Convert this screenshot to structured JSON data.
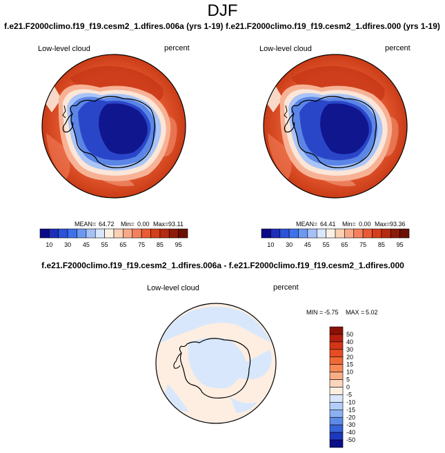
{
  "season": "DJF",
  "panels": [
    {
      "title": "f.e21.F2000climo.f19_f19.cesm2_1.dfires.006a (yrs 1-19)",
      "variable": "Low-level cloud",
      "units": "percent",
      "stats": {
        "mean_label": "MEAN=",
        "mean": "64.72",
        "min_label": "Min=",
        "min": "0.00",
        "max_label": "Max=",
        "max": "93.11"
      }
    },
    {
      "title": "f.e21.F2000climo.f19_f19.cesm2_1.dfires.000 (yrs 1-19)",
      "variable": "Low-level cloud",
      "units": "percent",
      "stats": {
        "mean_label": "MEAN=",
        "mean": "64.41",
        "min_label": "Min=",
        "min": "0.00",
        "max_label": "Max=",
        "max": "93.36"
      }
    }
  ],
  "field_colorbar": {
    "labels": [
      "10",
      "30",
      "45",
      "55",
      "65",
      "75",
      "85",
      "95"
    ],
    "colors": [
      "#0a0a87",
      "#1e2eb9",
      "#2b52d9",
      "#3f71ea",
      "#6d98f1",
      "#a6c1f7",
      "#d9e7fc",
      "#fdf1e6",
      "#fbd0b4",
      "#f8a98a",
      "#f3815e",
      "#ea5a35",
      "#d63d1b",
      "#b52a10",
      "#8e1a08",
      "#6b1003"
    ]
  },
  "difference": {
    "title": "f.e21.F2000climo.f19_f19.cesm2_1.dfires.006a - f.e21.F2000climo.f19_f19.cesm2_1.dfires.000",
    "variable": "Low-level cloud",
    "units": "percent",
    "min_label": "MIN =",
    "min": "-5.75",
    "max_label": "MAX =",
    "max": "5.02",
    "colorbar_labels": [
      "50",
      "40",
      "30",
      "20",
      "15",
      "10",
      "5",
      "0",
      "-5",
      "-10",
      "-15",
      "-20",
      "-30",
      "-40",
      "-50"
    ],
    "colorbar_colors": [
      "#8b1106",
      "#b41e0e",
      "#d43517",
      "#e54d22",
      "#ef6a38",
      "#f58a56",
      "#f9ad86",
      "#fbd6bc",
      "#fdeee1",
      "#d8e7fb",
      "#b2cdf6",
      "#8cb1f0",
      "#5d8ae6",
      "#3862d8",
      "#1d38be",
      "#0a0f88"
    ]
  }
}
